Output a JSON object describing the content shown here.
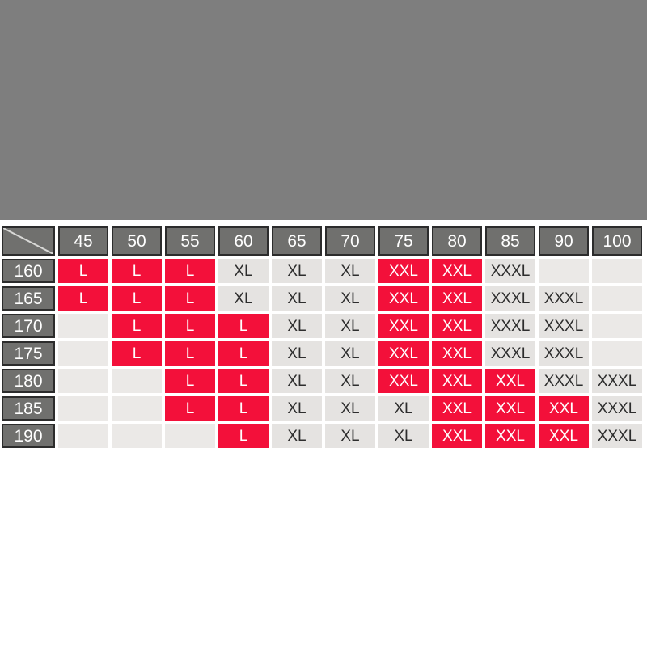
{
  "banner": {
    "color": "#7e7e7e"
  },
  "colors": {
    "page_bg": "#ffffff",
    "header_bg": "#70706e",
    "header_border": "#2c2c2c",
    "header_text": "#ffffff",
    "cell_bg": "#e5e3e1",
    "cell_empty_bg": "#ebe9e7",
    "cell_text": "#2d2d2d",
    "highlight_bg": "#f3103a",
    "highlight_text": "#ffffff",
    "diagonal_line": "#d8d8d6"
  },
  "chart_data": {
    "type": "table",
    "title": "",
    "legend_position": "none",
    "columns": [
      "45",
      "50",
      "55",
      "60",
      "65",
      "70",
      "75",
      "80",
      "85",
      "90",
      "100"
    ],
    "rows": [
      {
        "header": "160",
        "cells": [
          {
            "label": "L",
            "highlight": true
          },
          {
            "label": "L",
            "highlight": true
          },
          {
            "label": "L",
            "highlight": true
          },
          {
            "label": "XL",
            "highlight": false
          },
          {
            "label": "XL",
            "highlight": false
          },
          {
            "label": "XL",
            "highlight": false
          },
          {
            "label": "XXL",
            "highlight": true
          },
          {
            "label": "XXL",
            "highlight": true
          },
          {
            "label": "XXXL",
            "highlight": false
          },
          {
            "label": "",
            "highlight": false
          },
          {
            "label": "",
            "highlight": false
          }
        ]
      },
      {
        "header": "165",
        "cells": [
          {
            "label": "L",
            "highlight": true
          },
          {
            "label": "L",
            "highlight": true
          },
          {
            "label": "L",
            "highlight": true
          },
          {
            "label": "XL",
            "highlight": false
          },
          {
            "label": "XL",
            "highlight": false
          },
          {
            "label": "XL",
            "highlight": false
          },
          {
            "label": "XXL",
            "highlight": true
          },
          {
            "label": "XXL",
            "highlight": true
          },
          {
            "label": "XXXL",
            "highlight": false
          },
          {
            "label": "XXXL",
            "highlight": false
          },
          {
            "label": "",
            "highlight": false
          }
        ]
      },
      {
        "header": "170",
        "cells": [
          {
            "label": "",
            "highlight": false
          },
          {
            "label": "L",
            "highlight": true
          },
          {
            "label": "L",
            "highlight": true
          },
          {
            "label": "L",
            "highlight": true
          },
          {
            "label": "XL",
            "highlight": false
          },
          {
            "label": "XL",
            "highlight": false
          },
          {
            "label": "XXL",
            "highlight": true
          },
          {
            "label": "XXL",
            "highlight": true
          },
          {
            "label": "XXXL",
            "highlight": false
          },
          {
            "label": "XXXL",
            "highlight": false
          },
          {
            "label": "",
            "highlight": false
          }
        ]
      },
      {
        "header": "175",
        "cells": [
          {
            "label": "",
            "highlight": false
          },
          {
            "label": "L",
            "highlight": true
          },
          {
            "label": "L",
            "highlight": true
          },
          {
            "label": "L",
            "highlight": true
          },
          {
            "label": "XL",
            "highlight": false
          },
          {
            "label": "XL",
            "highlight": false
          },
          {
            "label": "XXL",
            "highlight": true
          },
          {
            "label": "XXL",
            "highlight": true
          },
          {
            "label": "XXXL",
            "highlight": false
          },
          {
            "label": "XXXL",
            "highlight": false
          },
          {
            "label": "",
            "highlight": false
          }
        ]
      },
      {
        "header": "180",
        "cells": [
          {
            "label": "",
            "highlight": false
          },
          {
            "label": "",
            "highlight": false
          },
          {
            "label": "L",
            "highlight": true
          },
          {
            "label": "L",
            "highlight": true
          },
          {
            "label": "XL",
            "highlight": false
          },
          {
            "label": "XL",
            "highlight": false
          },
          {
            "label": "XXL",
            "highlight": true
          },
          {
            "label": "XXL",
            "highlight": true
          },
          {
            "label": "XXL",
            "highlight": true
          },
          {
            "label": "XXXL",
            "highlight": false
          },
          {
            "label": "XXXL",
            "highlight": false
          }
        ]
      },
      {
        "header": "185",
        "cells": [
          {
            "label": "",
            "highlight": false
          },
          {
            "label": "",
            "highlight": false
          },
          {
            "label": "L",
            "highlight": true
          },
          {
            "label": "L",
            "highlight": true
          },
          {
            "label": "XL",
            "highlight": false
          },
          {
            "label": "XL",
            "highlight": false
          },
          {
            "label": "XL",
            "highlight": false
          },
          {
            "label": "XXL",
            "highlight": true
          },
          {
            "label": "XXL",
            "highlight": true
          },
          {
            "label": "XXL",
            "highlight": true
          },
          {
            "label": "XXXL",
            "highlight": false
          }
        ]
      },
      {
        "header": "190",
        "cells": [
          {
            "label": "",
            "highlight": false
          },
          {
            "label": "",
            "highlight": false
          },
          {
            "label": "",
            "highlight": false
          },
          {
            "label": "L",
            "highlight": true
          },
          {
            "label": "XL",
            "highlight": false
          },
          {
            "label": "XL",
            "highlight": false
          },
          {
            "label": "XL",
            "highlight": false
          },
          {
            "label": "XXL",
            "highlight": true
          },
          {
            "label": "XXL",
            "highlight": true
          },
          {
            "label": "XXL",
            "highlight": true
          },
          {
            "label": "XXXL",
            "highlight": false
          }
        ]
      }
    ]
  }
}
